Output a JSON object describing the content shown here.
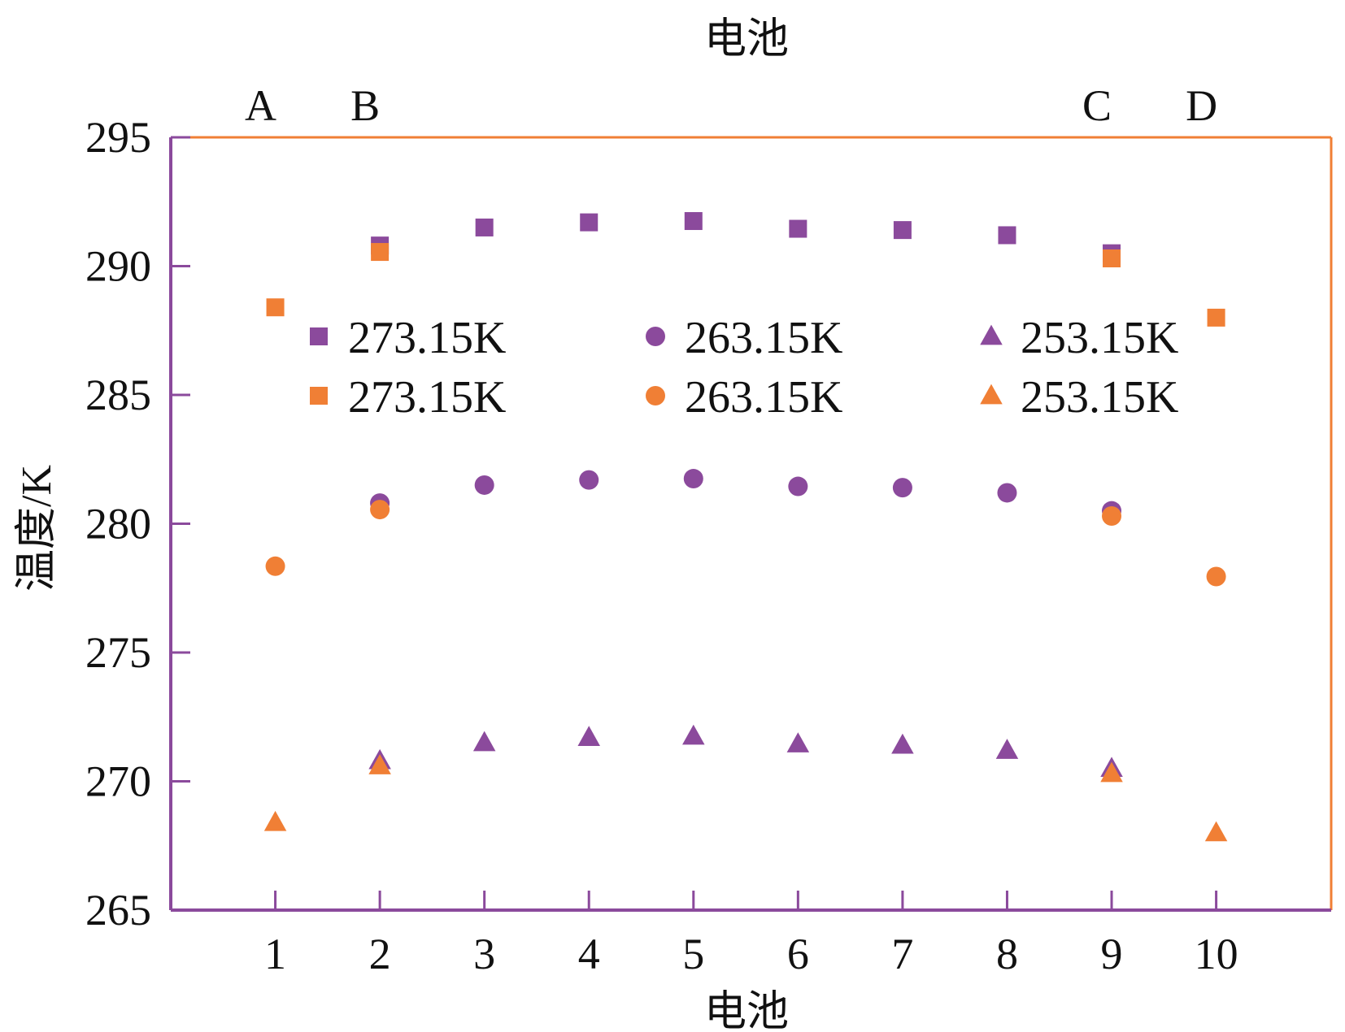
{
  "chart_data": {
    "type": "scatter",
    "title": "",
    "xlabel": "电池",
    "ylabel": "温度/K",
    "top_xlabel": "电池",
    "top_ticks": [
      {
        "x": 1,
        "label": "A"
      },
      {
        "x": 2,
        "label": "B"
      },
      {
        "x": 9,
        "label": "C"
      },
      {
        "x": 10,
        "label": "D"
      }
    ],
    "x": [
      1,
      2,
      3,
      4,
      5,
      6,
      7,
      8,
      9,
      10
    ],
    "x_tick_labels": [
      "1",
      "2",
      "3",
      "4",
      "5",
      "6",
      "7",
      "8",
      "9",
      "10"
    ],
    "xlim": [
      0,
      11.1
    ],
    "ylim": [
      265,
      295
    ],
    "y_ticks": [
      265,
      270,
      275,
      280,
      285,
      290,
      295
    ],
    "y_tick_labels": [
      "265",
      "270",
      "275",
      "280",
      "285",
      "290",
      "295"
    ],
    "grid": false,
    "legend_position": "upper-middle, 3 columns x 2 rows",
    "colors": {
      "purple": "#8B4A9C",
      "orange": "#F07F35"
    },
    "series": [
      {
        "name": "273.15K",
        "marker": "square",
        "color": "#8B4A9C",
        "values": [
          null,
          290.8,
          291.5,
          291.7,
          291.75,
          291.45,
          291.4,
          291.2,
          290.5,
          null
        ]
      },
      {
        "name": "263.15K",
        "marker": "circle",
        "color": "#8B4A9C",
        "values": [
          null,
          280.8,
          281.5,
          281.7,
          281.75,
          281.45,
          281.4,
          281.2,
          280.5,
          null
        ]
      },
      {
        "name": "253.15K",
        "marker": "triangle",
        "color": "#8B4A9C",
        "values": [
          null,
          270.8,
          271.5,
          271.7,
          271.75,
          271.45,
          271.4,
          271.2,
          270.5,
          null
        ]
      },
      {
        "name": "273.15K",
        "marker": "square",
        "color": "#F07F35",
        "values": [
          288.4,
          290.55,
          null,
          null,
          null,
          null,
          null,
          null,
          290.3,
          288.0
        ]
      },
      {
        "name": "263.15K",
        "marker": "circle",
        "color": "#F07F35",
        "values": [
          278.35,
          280.55,
          null,
          null,
          null,
          null,
          null,
          null,
          280.3,
          277.95
        ]
      },
      {
        "name": "253.15K",
        "marker": "triangle",
        "color": "#F07F35",
        "values": [
          268.4,
          270.6,
          null,
          null,
          null,
          null,
          null,
          null,
          270.3,
          268.0
        ]
      }
    ]
  }
}
